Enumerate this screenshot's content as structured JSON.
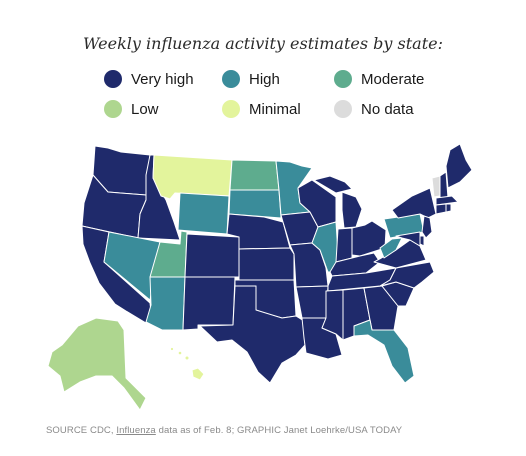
{
  "title": "Weekly influenza activity estimates by state:",
  "legend": [
    {
      "label": "Very high",
      "color": "#1f2a6b"
    },
    {
      "label": "High",
      "color": "#3a8c9a"
    },
    {
      "label": "Moderate",
      "color": "#5eac8e"
    },
    {
      "label": "Low",
      "color": "#aed68f"
    },
    {
      "label": "Minimal",
      "color": "#e3f49c"
    },
    {
      "label": "No data",
      "color": "#dcdcdc"
    }
  ],
  "map": {
    "states": [
      {
        "name": "Washington",
        "level": "Very high"
      },
      {
        "name": "Oregon",
        "level": "Very high"
      },
      {
        "name": "California",
        "level": "Very high"
      },
      {
        "name": "Idaho",
        "level": "Very high"
      },
      {
        "name": "Nevada",
        "level": "High"
      },
      {
        "name": "Utah",
        "level": "Moderate"
      },
      {
        "name": "Arizona",
        "level": "High"
      },
      {
        "name": "Montana",
        "level": "Minimal"
      },
      {
        "name": "Wyoming",
        "level": "High"
      },
      {
        "name": "Colorado",
        "level": "Very high"
      },
      {
        "name": "New Mexico",
        "level": "Very high"
      },
      {
        "name": "North Dakota",
        "level": "Moderate"
      },
      {
        "name": "South Dakota",
        "level": "High"
      },
      {
        "name": "Nebraska",
        "level": "Very high"
      },
      {
        "name": "Kansas",
        "level": "Very high"
      },
      {
        "name": "Oklahoma",
        "level": "Very high"
      },
      {
        "name": "Texas",
        "level": "Very high"
      },
      {
        "name": "Minnesota",
        "level": "High"
      },
      {
        "name": "Iowa",
        "level": "Very high"
      },
      {
        "name": "Missouri",
        "level": "Very high"
      },
      {
        "name": "Arkansas",
        "level": "Very high"
      },
      {
        "name": "Louisiana",
        "level": "Very high"
      },
      {
        "name": "Wisconsin",
        "level": "Very high"
      },
      {
        "name": "Illinois",
        "level": "High"
      },
      {
        "name": "Michigan",
        "level": "Very high"
      },
      {
        "name": "Indiana",
        "level": "Very high"
      },
      {
        "name": "Ohio",
        "level": "Very high"
      },
      {
        "name": "Kentucky",
        "level": "Very high"
      },
      {
        "name": "Tennessee",
        "level": "Very high"
      },
      {
        "name": "Mississippi",
        "level": "Very high"
      },
      {
        "name": "Alabama",
        "level": "Very high"
      },
      {
        "name": "Georgia",
        "level": "Very high"
      },
      {
        "name": "Florida",
        "level": "High"
      },
      {
        "name": "South Carolina",
        "level": "Very high"
      },
      {
        "name": "North Carolina",
        "level": "Very high"
      },
      {
        "name": "Virginia",
        "level": "Very high"
      },
      {
        "name": "West Virginia",
        "level": "High"
      },
      {
        "name": "Pennsylvania",
        "level": "High"
      },
      {
        "name": "New York",
        "level": "Very high"
      },
      {
        "name": "Vermont",
        "level": "No data"
      },
      {
        "name": "New Hampshire",
        "level": "Very high"
      },
      {
        "name": "Maine",
        "level": "Very high"
      },
      {
        "name": "Massachusetts",
        "level": "Very high"
      },
      {
        "name": "Connecticut",
        "level": "Very high"
      },
      {
        "name": "Rhode Island",
        "level": "Very high"
      },
      {
        "name": "New Jersey",
        "level": "Very high"
      },
      {
        "name": "Delaware",
        "level": "Very high"
      },
      {
        "name": "Maryland",
        "level": "Very high"
      },
      {
        "name": "Alaska",
        "level": "Low"
      },
      {
        "name": "Hawaii",
        "level": "Minimal"
      }
    ]
  },
  "source": {
    "prefix": "SOURCE CDC, ",
    "link": "Influenza",
    "suffix": " data as of Feb. 8; GRAPHIC Janet Loehrke/USA TODAY"
  }
}
